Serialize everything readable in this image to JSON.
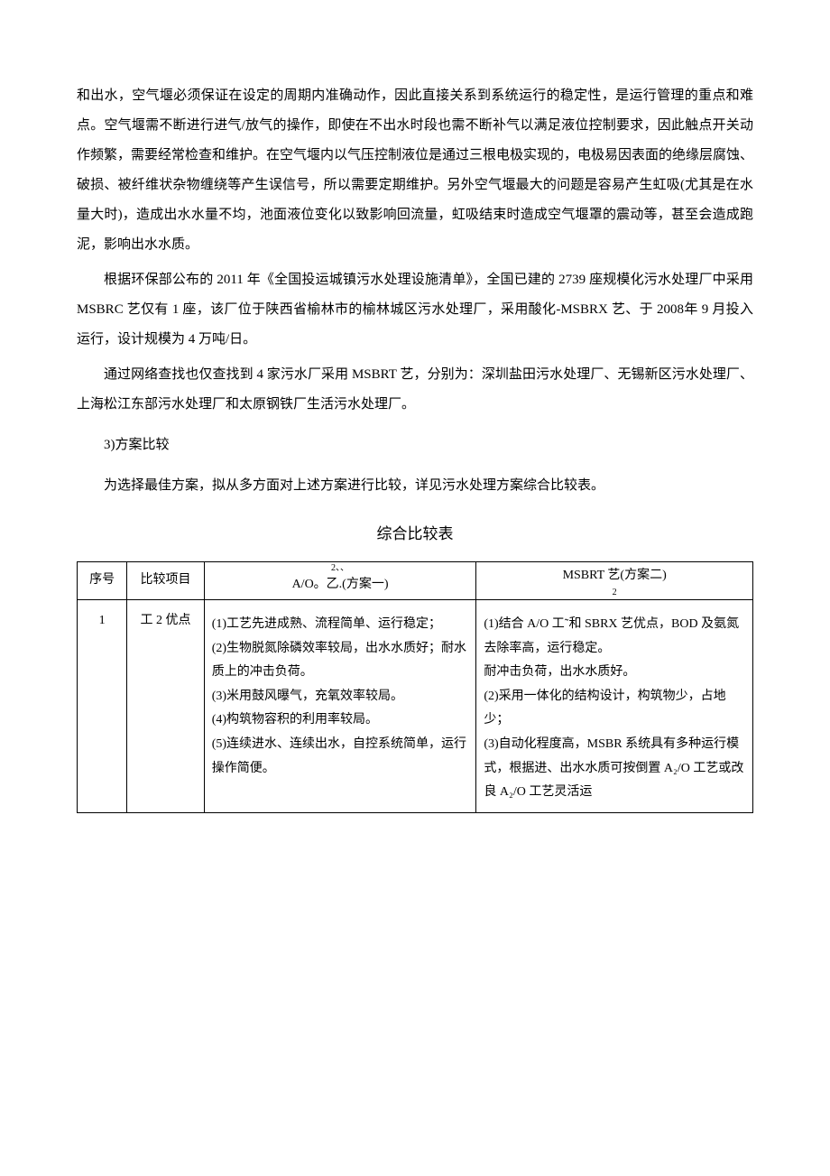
{
  "paragraphs": {
    "p1": "和出水，空气堰必须保证在设定的周期内准确动作，因此直接关系到系统运行的稳定性，是运行管理的重点和难点。空气堰需不断进行进气/放气的操作，即使在不出水时段也需不断补气以满足液位控制要求，因此触点开关动作频繁，需要经常检查和维护。在空气堰内以气压控制液位是通过三根电极实现的，电极易因表面的绝缘层腐蚀、破损、被纤维状杂物缠绕等产生误信号，所以需要定期维护。另外空气堰最大的问题是容易产生虹吸(尤其是在水量大时)，造成出水水量不均，池面液位变化以致影响回流量，虹吸结束时造成空气堰罩的震动等，甚至会造成跑泥，影响出水水质。",
    "p2": "根据环保部公布的 2011 年《全国投运城镇污水处理设施清单》，全国已建的 2739 座规模化污水处理厂中采用 MSBRC 艺仅有 1 座，该厂位于陕西省榆林市的榆林城区污水处理厂，采用酸化-MSBRX 艺、于 2008年 9 月投入运行，设计规模为 4 万吨/日。",
    "p3": "通过网络查找也仅查找到 4 家污水厂采用 MSBRT 艺，分别为：深圳盐田污水处理厂、无锡新区污水处理厂、上海松江东部污水处理厂和太原钢铁厂生活污水处理厂。",
    "section_num": "3)方案比较",
    "p4": "为选择最佳方案，拟从多方面对上述方案进行比较，详见污水处理方案综合比较表。"
  },
  "table": {
    "title": "综合比较表",
    "headers": {
      "seq": "序号",
      "item": "比较项目",
      "plan1_sup": "2、、",
      "plan1_main": "A/O。乙.(方案一)",
      "plan2_main": "MSBRT 艺(方案二)",
      "plan2_sub": "2"
    },
    "rows": [
      {
        "seq": "1",
        "item": "工 2 优点",
        "plan1": "(1)工艺先进成熟、流程简单、运行稳定；\n(2)生物脱氮除磷效率较局，出水水质好；耐水质上的冲击负荷。\n(3)米用鼓风曝气，充氧效率较局。\n(4)构筑物容积的利用率较局。\n(5)连续进水、连续出水，自控系统简单，运行操作简便。",
        "plan2": "(1)结合 A/O 工˜和 SBRX 艺优点，BOD 及氨氮去除率高，运行稳定。\n耐冲击负荷，出水水质好。\n (2)采用一体化的结构设计，构筑物少，占地少；\n (3)自动化程度高，MSBR 系统具有多种运行模式，根据进、出水水质可按倒置 A₂/O 工艺或改良 A₂/O 工艺灵活运"
      }
    ]
  }
}
